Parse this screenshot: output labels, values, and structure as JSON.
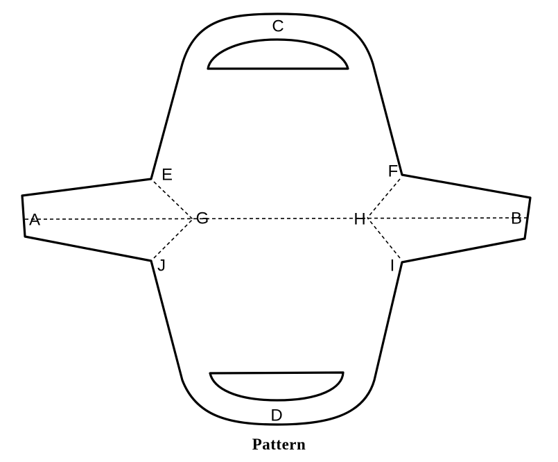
{
  "diagram": {
    "labels": {
      "a": "A",
      "b": "B",
      "c": "C",
      "d": "D",
      "e": "E",
      "f": "F",
      "g": "G",
      "h": "H",
      "i": "I",
      "j": "J"
    },
    "caption": "Pattern"
  }
}
